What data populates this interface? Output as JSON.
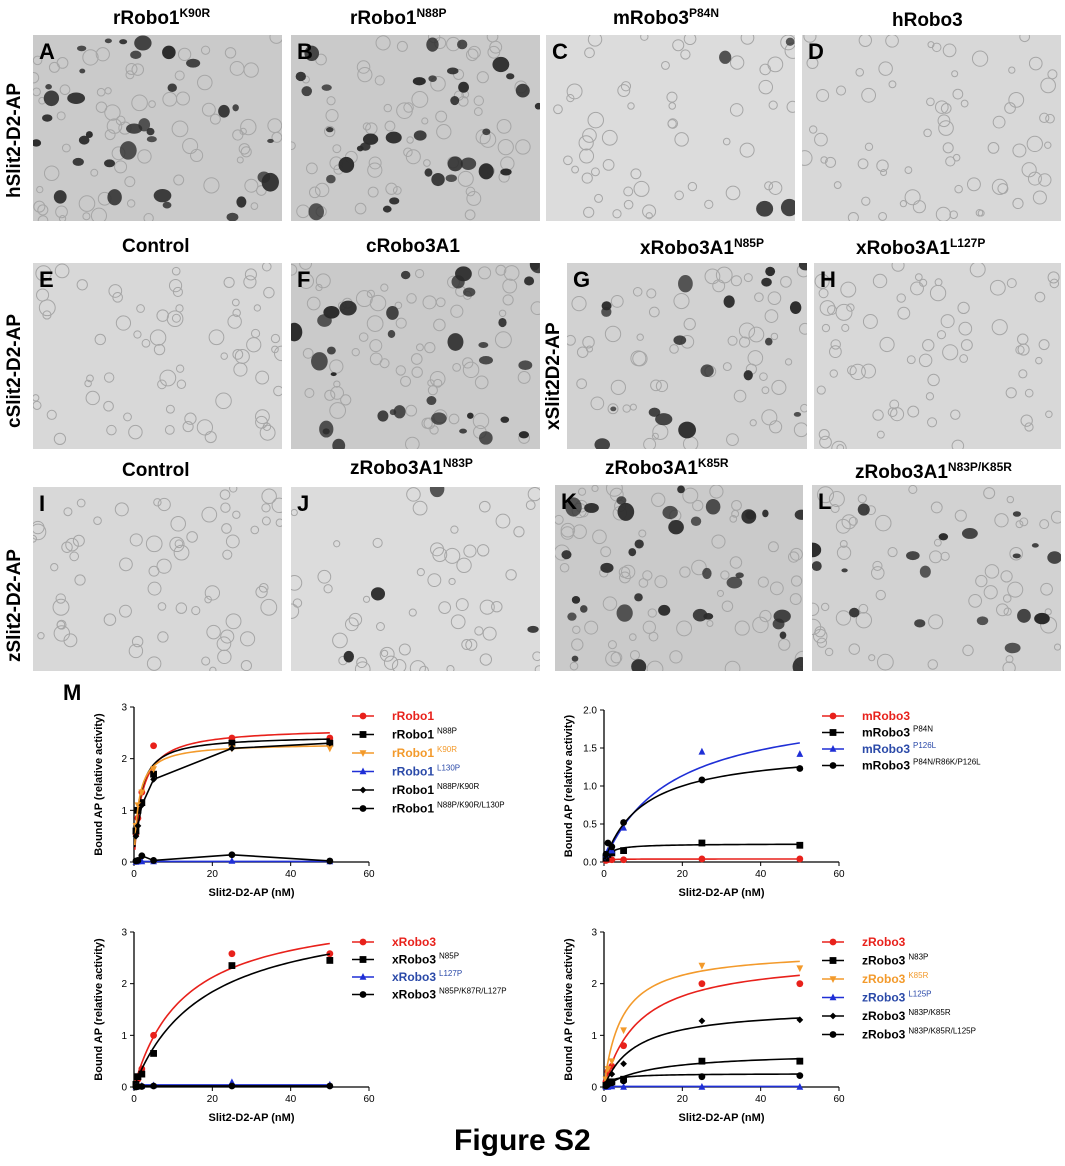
{
  "figure_title": "Figure S2",
  "panel_m_letter": "M",
  "column_titles": [
    {
      "id": "rrobo1-k90r",
      "base": "rRobo1",
      "sup": "K90R"
    },
    {
      "id": "rrobo1-n88p",
      "base": "rRobo1",
      "sup": "N88P"
    },
    {
      "id": "mrobo3-p84n",
      "base": "mRobo3",
      "sup": "P84N"
    },
    {
      "id": "hrobo3",
      "base": "hRobo3",
      "sup": ""
    },
    {
      "id": "control-1",
      "base": "Control",
      "sup": ""
    },
    {
      "id": "crobo3a1",
      "base": "cRobo3A1",
      "sup": ""
    },
    {
      "id": "xrobo3a1-n85p",
      "base": "xRobo3A1",
      "sup": "N85P"
    },
    {
      "id": "xrobo3a1-l127p",
      "base": "xRobo3A1",
      "sup": "L127P"
    },
    {
      "id": "control-2",
      "base": "Control",
      "sup": ""
    },
    {
      "id": "zrobo3a1-n83p",
      "base": "zRobo3A1",
      "sup": "N83P"
    },
    {
      "id": "zrobo3a1-k85r",
      "base": "zRobo3A1",
      "sup": "K85R"
    },
    {
      "id": "zrobo3a1-n83p-k85r",
      "base": "zRobo3A1",
      "sup": "N83P/K85R"
    }
  ],
  "row_labels": [
    "hSlit2-D2-AP",
    "cSlit2-D2-AP",
    "xSlit2D2-AP",
    "zSlit2-D2-AP"
  ],
  "panels": [
    {
      "letter": "A",
      "density": "high"
    },
    {
      "letter": "B",
      "density": "high"
    },
    {
      "letter": "C",
      "density": "low"
    },
    {
      "letter": "D",
      "density": "none"
    },
    {
      "letter": "E",
      "density": "none"
    },
    {
      "letter": "F",
      "density": "high"
    },
    {
      "letter": "G",
      "density": "medium"
    },
    {
      "letter": "H",
      "density": "none"
    },
    {
      "letter": "I",
      "density": "none"
    },
    {
      "letter": "J",
      "density": "low"
    },
    {
      "letter": "K",
      "density": "high"
    },
    {
      "letter": "L",
      "density": "medium"
    }
  ],
  "chart_data": [
    {
      "type": "line",
      "xlabel": "Slit2-D2-AP (nM)",
      "ylabel": "Bound AP (relative activity)",
      "xlim": [
        0,
        60
      ],
      "ylim": [
        0,
        3
      ],
      "xticks": [
        0,
        20,
        40,
        60
      ],
      "yticks": [
        0,
        1,
        2,
        3
      ],
      "ytick_format": "int",
      "legend_position": "right",
      "series": [
        {
          "name": "rRobo1",
          "sup": "",
          "color": "#e8211b",
          "legend_color": "#e8211b",
          "marker": "circle",
          "fit": "hyperbolic",
          "bmax": 2.6,
          "kd": 2.0,
          "points": [
            [
              0.5,
              0.55
            ],
            [
              1,
              0.85
            ],
            [
              2,
              1.35
            ],
            [
              5,
              2.25
            ],
            [
              25,
              2.4
            ],
            [
              50,
              2.4
            ]
          ]
        },
        {
          "name": "rRobo1",
          "sup": "N88P",
          "color": "#000000",
          "legend_color": "#000000",
          "marker": "square",
          "fit": "hyperbolic",
          "bmax": 2.45,
          "kd": 1.5,
          "points": [
            [
              0.5,
              0.6
            ],
            [
              1,
              1.0
            ],
            [
              2,
              1.15
            ],
            [
              5,
              1.7
            ],
            [
              25,
              2.3
            ],
            [
              50,
              2.3
            ]
          ]
        },
        {
          "name": "rRobo1",
          "sup": "K90R",
          "color": "#f39a2b",
          "legend_color": "#f39a2b",
          "marker": "triangle-down",
          "fit": "hyperbolic",
          "bmax": 2.3,
          "kd": 1.2,
          "points": [
            [
              0.5,
              0.7
            ],
            [
              1,
              1.1
            ],
            [
              2,
              1.35
            ],
            [
              5,
              1.8
            ],
            [
              25,
              2.2
            ],
            [
              50,
              2.2
            ]
          ]
        },
        {
          "name": "rRobo1",
          "sup": "L130P",
          "color": "#1f2fd6",
          "legend_color": "#2a49a8",
          "marker": "triangle-up",
          "fit": "flat",
          "bmax": 0.01,
          "kd": 1,
          "points": [
            [
              0.5,
              0.0
            ],
            [
              1,
              0.01
            ],
            [
              2,
              0.01
            ],
            [
              5,
              0.01
            ],
            [
              25,
              0.02
            ],
            [
              50,
              0.01
            ]
          ]
        },
        {
          "name": "rRobo1",
          "sup": "N88P/K90R",
          "color": "#000000",
          "legend_color": "#000000",
          "marker": "diamond",
          "fit": "connect",
          "bmax": 0,
          "kd": 1,
          "points": [
            [
              0.5,
              0.5
            ],
            [
              1,
              0.7
            ],
            [
              2,
              1.1
            ],
            [
              5,
              1.6
            ],
            [
              25,
              2.2
            ],
            [
              50,
              2.3
            ]
          ]
        },
        {
          "name": "rRobo1",
          "sup": "N88P/K90R/L130P",
          "color": "#000000",
          "legend_color": "#000000",
          "marker": "circle",
          "fit": "connect",
          "bmax": 0,
          "kd": 1,
          "points": [
            [
              0.5,
              0.02
            ],
            [
              1,
              0.03
            ],
            [
              2,
              0.12
            ],
            [
              5,
              0.03
            ],
            [
              25,
              0.14
            ],
            [
              50,
              0.02
            ]
          ]
        }
      ]
    },
    {
      "type": "line",
      "xlabel": "Slit2-D2-AP (nM)",
      "ylabel": "Bound AP (relative activity)",
      "xlim": [
        0,
        60
      ],
      "ylim": [
        0,
        2
      ],
      "xticks": [
        0,
        20,
        40,
        60
      ],
      "yticks": [
        0,
        0.5,
        1.0,
        1.5,
        2.0
      ],
      "ytick_format": "one-decimal",
      "legend_position": "right",
      "series": [
        {
          "name": "mRobo3",
          "sup": "",
          "color": "#e8211b",
          "legend_color": "#e8211b",
          "marker": "circle",
          "fit": "hyperbolic",
          "bmax": 0.04,
          "kd": 0.5,
          "points": [
            [
              0.5,
              0.02
            ],
            [
              1,
              0.03
            ],
            [
              2,
              0.03
            ],
            [
              5,
              0.03
            ],
            [
              25,
              0.04
            ],
            [
              50,
              0.04
            ]
          ]
        },
        {
          "name": "mRobo3",
          "sup": "P84N",
          "color": "#000000",
          "legend_color": "#000000",
          "marker": "square",
          "fit": "hyperbolic",
          "bmax": 0.24,
          "kd": 1.5,
          "points": [
            [
              0.5,
              0.05
            ],
            [
              1,
              0.1
            ],
            [
              2,
              0.12
            ],
            [
              5,
              0.15
            ],
            [
              25,
              0.25
            ],
            [
              50,
              0.22
            ]
          ]
        },
        {
          "name": "mRobo3",
          "sup": "P126L",
          "color": "#1f2fd6",
          "legend_color": "#2a49a8",
          "marker": "triangle-up",
          "fit": "hyperbolic",
          "bmax": 2.1,
          "kd": 17,
          "points": [
            [
              0.5,
              0.1
            ],
            [
              1,
              0.15
            ],
            [
              2,
              0.15
            ],
            [
              5,
              0.45
            ],
            [
              25,
              1.45
            ],
            [
              50,
              1.42
            ]
          ]
        },
        {
          "name": "mRobo3",
          "sup": "P84N/R86K/P126L",
          "color": "#000000",
          "legend_color": "#000000",
          "marker": "circle",
          "fit": "hyperbolic",
          "bmax": 1.5,
          "kd": 10,
          "points": [
            [
              0.5,
              0.1
            ],
            [
              1,
              0.25
            ],
            [
              2,
              0.2
            ],
            [
              5,
              0.52
            ],
            [
              25,
              1.08
            ],
            [
              50,
              1.23
            ]
          ]
        }
      ]
    },
    {
      "type": "line",
      "xlabel": "Slit2-D2-AP (nM)",
      "ylabel": "Bound AP (relative activity)",
      "xlim": [
        0,
        60
      ],
      "ylim": [
        0,
        3
      ],
      "xticks": [
        0,
        20,
        40,
        60
      ],
      "yticks": [
        0,
        1,
        2,
        3
      ],
      "ytick_format": "int",
      "legend_position": "right",
      "series": [
        {
          "name": "xRobo3",
          "sup": "",
          "color": "#e8211b",
          "legend_color": "#e8211b",
          "marker": "circle",
          "fit": "hyperbolic",
          "bmax": 3.5,
          "kd": 13,
          "points": [
            [
              0.5,
              0.05
            ],
            [
              1,
              0.15
            ],
            [
              2,
              0.35
            ],
            [
              5,
              1.0
            ],
            [
              25,
              2.58
            ],
            [
              50,
              2.58
            ]
          ]
        },
        {
          "name": "xRobo3",
          "sup": "N85P",
          "color": "#000000",
          "legend_color": "#000000",
          "marker": "square",
          "fit": "hyperbolic",
          "bmax": 3.5,
          "kd": 18,
          "points": [
            [
              0.5,
              0.05
            ],
            [
              1,
              0.2
            ],
            [
              2,
              0.25
            ],
            [
              5,
              0.65
            ],
            [
              25,
              2.35
            ],
            [
              50,
              2.45
            ]
          ]
        },
        {
          "name": "xRobo3",
          "sup": "L127P",
          "color": "#1f2fd6",
          "legend_color": "#2a49a8",
          "marker": "triangle-up",
          "fit": "flat",
          "bmax": 0.04,
          "kd": 1,
          "points": [
            [
              0.5,
              0.0
            ],
            [
              1,
              0.01
            ],
            [
              2,
              0.02
            ],
            [
              5,
              0.03
            ],
            [
              25,
              0.09
            ],
            [
              50,
              0.04
            ]
          ]
        },
        {
          "name": "xRobo3",
          "sup": "N85P/K87R/L127P",
          "color": "#000000",
          "legend_color": "#000000",
          "marker": "circle",
          "fit": "flat",
          "bmax": 0.02,
          "kd": 1,
          "points": [
            [
              0.5,
              0.0
            ],
            [
              1,
              0.01
            ],
            [
              2,
              0.01
            ],
            [
              5,
              0.02
            ],
            [
              25,
              0.02
            ],
            [
              50,
              0.02
            ]
          ]
        }
      ]
    },
    {
      "type": "line",
      "xlabel": "Slit2-D2-AP (nM)",
      "ylabel": "Bound AP (relative activity)",
      "xlim": [
        0,
        60
      ],
      "ylim": [
        0,
        3
      ],
      "xticks": [
        0,
        20,
        40,
        60
      ],
      "yticks": [
        0,
        1,
        2,
        3
      ],
      "ytick_format": "int",
      "legend_position": "right",
      "series": [
        {
          "name": "zRobo3",
          "sup": "",
          "color": "#e8211b",
          "legend_color": "#e8211b",
          "marker": "circle",
          "fit": "hyperbolic",
          "bmax": 2.55,
          "kd": 9,
          "points": [
            [
              0.5,
              0.1
            ],
            [
              1,
              0.3
            ],
            [
              2,
              0.4
            ],
            [
              5,
              0.8
            ],
            [
              25,
              2.0
            ],
            [
              50,
              2.0
            ]
          ]
        },
        {
          "name": "zRobo3",
          "sup": "N83P",
          "color": "#000000",
          "legend_color": "#000000",
          "marker": "square",
          "fit": "hyperbolic",
          "bmax": 0.68,
          "kd": 12,
          "points": [
            [
              0.5,
              0.03
            ],
            [
              1,
              0.05
            ],
            [
              2,
              0.1
            ],
            [
              5,
              0.15
            ],
            [
              25,
              0.5
            ],
            [
              50,
              0.5
            ]
          ]
        },
        {
          "name": "zRobo3",
          "sup": "K85R",
          "color": "#f39a2b",
          "legend_color": "#f39a2b",
          "marker": "triangle-down",
          "fit": "hyperbolic",
          "bmax": 2.65,
          "kd": 4.5,
          "points": [
            [
              0.5,
              0.15
            ],
            [
              1,
              0.35
            ],
            [
              2,
              0.5
            ],
            [
              5,
              1.1
            ],
            [
              25,
              2.35
            ],
            [
              50,
              2.3
            ]
          ]
        },
        {
          "name": "zRobo3",
          "sup": "L125P",
          "color": "#1f2fd6",
          "legend_color": "#2a49a8",
          "marker": "triangle-up",
          "fit": "flat",
          "bmax": 0.01,
          "kd": 1,
          "points": [
            [
              0.5,
              0.0
            ],
            [
              1,
              0.0
            ],
            [
              2,
              0.01
            ],
            [
              5,
              0.0
            ],
            [
              25,
              0.0
            ],
            [
              50,
              0.0
            ]
          ]
        },
        {
          "name": "zRobo3",
          "sup": "N83P/K85R",
          "color": "#000000",
          "legend_color": "#000000",
          "marker": "diamond",
          "fit": "hyperbolic",
          "bmax": 1.55,
          "kd": 8,
          "points": [
            [
              0.5,
              0.05
            ],
            [
              1,
              0.1
            ],
            [
              2,
              0.25
            ],
            [
              5,
              0.45
            ],
            [
              25,
              1.28
            ],
            [
              50,
              1.3
            ]
          ]
        },
        {
          "name": "zRobo3",
          "sup": "N83P/K85R/L125P",
          "color": "#000000",
          "legend_color": "#000000",
          "marker": "circle",
          "fit": "hyperbolic",
          "bmax": 0.26,
          "kd": 2,
          "points": [
            [
              0.5,
              0.02
            ],
            [
              1,
              0.05
            ],
            [
              2,
              0.08
            ],
            [
              5,
              0.12
            ],
            [
              25,
              0.2
            ],
            [
              50,
              0.22
            ]
          ]
        }
      ]
    }
  ]
}
